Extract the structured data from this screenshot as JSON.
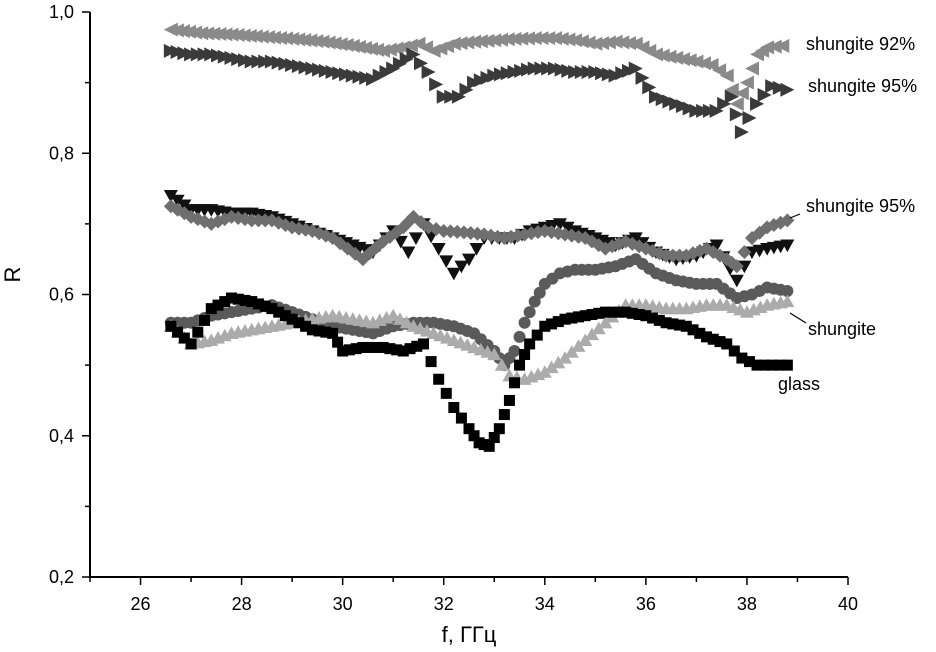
{
  "chart_data": {
    "type": "scatter",
    "xlabel": "f, ГГц",
    "ylabel": "R",
    "xlim": [
      25,
      40
    ],
    "ylim": [
      0.2,
      1.0
    ],
    "x_ticks": [
      "26",
      "28",
      "30",
      "32",
      "34",
      "36",
      "38",
      "40"
    ],
    "x_tick_values": [
      26,
      28,
      30,
      32,
      34,
      36,
      38,
      40
    ],
    "y_ticks": [
      "0,2",
      "0,4",
      "0,6",
      "0,8",
      "1,0"
    ],
    "y_tick_values": [
      0.2,
      0.4,
      0.6,
      0.8,
      1.0
    ],
    "grid": false,
    "series": [
      {
        "label": "shungite 92%",
        "marker": "triangle-left",
        "color": "#8a8a8a",
        "x": [
          26.6,
          27.2,
          27.8,
          28.4,
          29.0,
          29.6,
          30.2,
          30.8,
          31.2,
          31.5,
          31.8,
          32.2,
          32.6,
          33.0,
          33.4,
          33.8,
          34.2,
          34.6,
          35.0,
          35.4,
          35.8,
          36.2,
          36.6,
          37.0,
          37.3,
          37.6,
          37.8,
          38.0,
          38.2,
          38.4,
          38.7
        ],
        "y": [
          0.975,
          0.97,
          0.968,
          0.965,
          0.962,
          0.958,
          0.952,
          0.945,
          0.95,
          0.955,
          0.945,
          0.955,
          0.958,
          0.96,
          0.962,
          0.963,
          0.963,
          0.96,
          0.955,
          0.958,
          0.955,
          0.94,
          0.935,
          0.93,
          0.925,
          0.91,
          0.87,
          0.9,
          0.94,
          0.95,
          0.952
        ]
      },
      {
        "label": "shungite 95%",
        "marker": "triangle-right",
        "color": "#3a3a3a",
        "x": [
          26.6,
          27.0,
          27.4,
          27.8,
          28.2,
          28.6,
          29.0,
          29.4,
          29.8,
          30.2,
          30.6,
          31.0,
          31.4,
          31.7,
          32.0,
          32.3,
          32.6,
          33.0,
          33.4,
          33.8,
          34.2,
          34.6,
          35.0,
          35.4,
          35.8,
          36.2,
          36.6,
          37.0,
          37.4,
          37.7,
          37.9,
          38.2,
          38.5,
          38.8
        ],
        "y": [
          0.945,
          0.94,
          0.94,
          0.935,
          0.93,
          0.93,
          0.925,
          0.92,
          0.915,
          0.91,
          0.905,
          0.92,
          0.94,
          0.915,
          0.88,
          0.88,
          0.9,
          0.91,
          0.915,
          0.92,
          0.92,
          0.915,
          0.915,
          0.91,
          0.92,
          0.88,
          0.87,
          0.86,
          0.86,
          0.88,
          0.83,
          0.87,
          0.895,
          0.89
        ]
      },
      {
        "label": "shungite 95%",
        "marker": "triangle-down",
        "color": "#111111",
        "x": [
          26.6,
          27.0,
          27.4,
          27.8,
          28.2,
          28.6,
          29.0,
          29.4,
          29.8,
          30.2,
          30.6,
          31.0,
          31.3,
          31.6,
          31.9,
          32.2,
          32.5,
          32.8,
          33.1,
          33.4,
          33.7,
          34.0,
          34.3,
          34.6,
          35.0,
          35.4,
          35.8,
          36.2,
          36.6,
          37.0,
          37.4,
          37.8,
          38.1,
          38.4,
          38.8
        ],
        "y": [
          0.74,
          0.72,
          0.72,
          0.715,
          0.715,
          0.71,
          0.7,
          0.69,
          0.68,
          0.67,
          0.66,
          0.69,
          0.66,
          0.7,
          0.665,
          0.63,
          0.65,
          0.68,
          0.68,
          0.68,
          0.69,
          0.695,
          0.7,
          0.69,
          0.68,
          0.67,
          0.68,
          0.66,
          0.65,
          0.655,
          0.67,
          0.62,
          0.66,
          0.665,
          0.67
        ]
      },
      {
        "label": "",
        "marker": "diamond",
        "color": "#6f6f6f",
        "x": [
          26.6,
          27.0,
          27.4,
          27.8,
          28.2,
          28.6,
          29.0,
          29.4,
          29.8,
          30.1,
          30.4,
          30.8,
          31.2,
          31.4,
          31.7,
          32.0,
          32.4,
          32.8,
          33.2,
          33.6,
          34.0,
          34.4,
          34.8,
          35.2,
          35.6,
          36.0,
          36.4,
          36.8,
          37.2,
          37.6,
          37.8,
          38.1,
          38.4,
          38.8
        ],
        "y": [
          0.725,
          0.71,
          0.7,
          0.71,
          0.705,
          0.705,
          0.695,
          0.69,
          0.68,
          0.665,
          0.65,
          0.675,
          0.695,
          0.71,
          0.695,
          0.69,
          0.688,
          0.685,
          0.68,
          0.685,
          0.69,
          0.685,
          0.68,
          0.665,
          0.675,
          0.665,
          0.655,
          0.655,
          0.665,
          0.65,
          0.64,
          0.68,
          0.695,
          0.705
        ]
      },
      {
        "label": "",
        "marker": "circle",
        "color": "#5a5a5a",
        "x": [
          26.6,
          27.0,
          27.4,
          27.8,
          28.2,
          28.6,
          29.0,
          29.4,
          29.8,
          30.2,
          30.6,
          31.0,
          31.4,
          31.8,
          32.2,
          32.6,
          33.0,
          33.2,
          33.4,
          33.6,
          33.8,
          34.0,
          34.3,
          34.6,
          35.0,
          35.4,
          35.8,
          36.2,
          36.6,
          37.0,
          37.4,
          37.8,
          38.1,
          38.4,
          38.8
        ],
        "y": [
          0.56,
          0.56,
          0.57,
          0.575,
          0.58,
          0.585,
          0.575,
          0.565,
          0.555,
          0.55,
          0.545,
          0.555,
          0.56,
          0.56,
          0.555,
          0.545,
          0.52,
          0.5,
          0.52,
          0.56,
          0.59,
          0.615,
          0.63,
          0.635,
          0.635,
          0.64,
          0.65,
          0.63,
          0.62,
          0.615,
          0.615,
          0.595,
          0.6,
          0.61,
          0.605
        ]
      },
      {
        "label": "shungite",
        "marker": "triangle-up",
        "color": "#ababab",
        "x": [
          26.6,
          27.0,
          27.4,
          27.8,
          28.2,
          28.6,
          29.0,
          29.4,
          29.8,
          30.2,
          30.6,
          31.0,
          31.4,
          31.8,
          32.2,
          32.6,
          33.0,
          33.3,
          33.6,
          34.0,
          34.4,
          34.8,
          35.2,
          35.6,
          36.0,
          36.4,
          36.8,
          37.2,
          37.6,
          38.0,
          38.4,
          38.8
        ],
        "y": [
          0.555,
          0.53,
          0.535,
          0.545,
          0.55,
          0.555,
          0.56,
          0.565,
          0.57,
          0.565,
          0.56,
          0.57,
          0.555,
          0.545,
          0.535,
          0.525,
          0.515,
          0.485,
          0.48,
          0.49,
          0.51,
          0.535,
          0.56,
          0.585,
          0.585,
          0.58,
          0.58,
          0.585,
          0.585,
          0.575,
          0.585,
          0.59
        ]
      },
      {
        "label": "glass",
        "marker": "square",
        "color": "#000000",
        "x": [
          26.6,
          27.0,
          27.4,
          27.8,
          28.2,
          28.6,
          29.0,
          29.4,
          29.8,
          30.0,
          30.4,
          30.8,
          31.2,
          31.6,
          31.9,
          32.2,
          32.5,
          32.7,
          32.9,
          33.1,
          33.3,
          33.5,
          33.7,
          34.0,
          34.4,
          34.8,
          35.2,
          35.6,
          36.0,
          36.4,
          36.8,
          37.2,
          37.6,
          37.9,
          38.2,
          38.5,
          38.8
        ],
        "y": [
          0.555,
          0.53,
          0.58,
          0.595,
          0.59,
          0.58,
          0.565,
          0.55,
          0.545,
          0.52,
          0.525,
          0.525,
          0.52,
          0.53,
          0.48,
          0.44,
          0.41,
          0.39,
          0.385,
          0.41,
          0.45,
          0.5,
          0.53,
          0.555,
          0.565,
          0.57,
          0.575,
          0.575,
          0.57,
          0.56,
          0.555,
          0.54,
          0.53,
          0.51,
          0.5,
          0.5,
          0.5
        ]
      }
    ]
  }
}
